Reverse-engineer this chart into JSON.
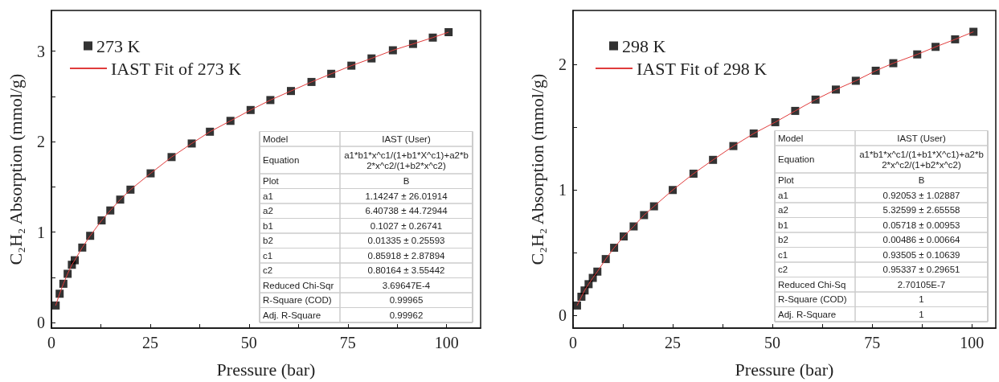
{
  "chart_data": [
    {
      "type": "scatter",
      "xlabel": "Pressure (bar)",
      "ylabel": "C₂H₂ Absorption (mmol/g)",
      "xlim": [
        0,
        108.6
      ],
      "ylim": [
        -0.06,
        3.45
      ],
      "xticks": [
        0,
        {
          "value": 12.5,
          "label": null
        },
        25,
        {
          "value": 37.5,
          "label": null
        },
        50,
        {
          "value": 62.5,
          "label": null
        },
        75,
        {
          "value": 87.5,
          "label": null
        },
        100
      ],
      "yticks": [
        0,
        {
          "value": 0.5,
          "label": null
        },
        1,
        {
          "value": 1.5,
          "label": null
        },
        2,
        {
          "value": 2.5,
          "label": null
        },
        3
      ],
      "legend": "top left",
      "grid": false,
      "series": [
        {
          "name": "273 K",
          "marker": "square",
          "color": "#000000",
          "x": [
            1.07,
            2.08,
            3.02,
            4.1,
            5.17,
            5.9,
            7.8,
            9.8,
            12.7,
            14.9,
            17.4,
            20.0,
            25.1,
            30.4,
            35.5,
            40.1,
            45.3,
            50.4,
            55.4,
            60.6,
            65.8,
            70.8,
            75.9,
            81.0,
            86.4,
            91.5,
            96.5,
            100.5
          ],
          "values": [
            0.19,
            0.32,
            0.43,
            0.54,
            0.64,
            0.69,
            0.83,
            0.96,
            1.13,
            1.24,
            1.36,
            1.47,
            1.65,
            1.83,
            1.98,
            2.11,
            2.23,
            2.35,
            2.46,
            2.56,
            2.66,
            2.75,
            2.84,
            2.92,
            3.01,
            3.08,
            3.15,
            3.21
          ]
        },
        {
          "name": "IAST Fit of 273 K",
          "type": "line",
          "marker": "none",
          "color": "#e03c3c",
          "x": [
            1.07,
            2.08,
            3.02,
            4.1,
            5.17,
            5.9,
            7.8,
            9.8,
            12.7,
            14.9,
            17.4,
            20.0,
            25.1,
            30.4,
            35.5,
            40.1,
            45.3,
            50.4,
            55.4,
            60.6,
            65.8,
            70.8,
            75.9,
            81.0,
            86.4,
            91.5,
            96.5,
            100.5
          ],
          "values": [
            0.19,
            0.32,
            0.43,
            0.54,
            0.64,
            0.69,
            0.83,
            0.96,
            1.13,
            1.24,
            1.36,
            1.47,
            1.65,
            1.83,
            1.98,
            2.11,
            2.23,
            2.35,
            2.46,
            2.56,
            2.66,
            2.75,
            2.84,
            2.92,
            3.01,
            3.08,
            3.15,
            3.21
          ]
        }
      ],
      "annotations": [
        "Model",
        "IAST (User)",
        "Equation",
        "a1*b1*x^c1/(1+b1*X^c1)+a2*b2*x^c2/(1+b2*x^c2)",
        "Plot",
        "B",
        "a1",
        "1.14247 ± 26.01914",
        "a2",
        "6.40738 ± 44.72944",
        "b1",
        "0.1027 ± 0.26741",
        "b2",
        "0.01335 ± 0.25593",
        "c1",
        "0.85918 ± 2.87894",
        "c2",
        "0.80164 ± 3.55442",
        "Reduced Chi-Sqr",
        "3.69647E-4",
        "R-Square (COD)",
        "0.99965",
        "Adj. R-Square",
        "0.99962"
      ]
    },
    {
      "type": "scatter",
      "xlabel": "Pressure (bar)",
      "ylabel": "C₂H₂ Absorption (mmol/g)",
      "xlim": [
        0,
        106
      ],
      "ylim": [
        -0.1,
        2.43
      ],
      "xticks": [
        0,
        {
          "value": 12.5,
          "label": null
        },
        25,
        {
          "value": 37.5,
          "label": null
        },
        50,
        {
          "value": 62.5,
          "label": null
        },
        75,
        {
          "value": 87.5,
          "label": null
        },
        100
      ],
      "yticks": [
        0,
        {
          "value": 0.5,
          "label": null
        },
        1,
        {
          "value": 1.5,
          "label": null
        },
        2
      ],
      "legend": "top left",
      "grid": false,
      "series": [
        {
          "name": "298 K",
          "marker": "square",
          "color": "#000000",
          "x": [
            1.0,
            2.1,
            2.9,
            3.9,
            4.95,
            6.1,
            8.2,
            10.3,
            12.7,
            15.2,
            17.8,
            20.3,
            25.0,
            30.2,
            35.1,
            40.2,
            45.3,
            50.7,
            55.7,
            60.8,
            65.9,
            70.9,
            75.9,
            80.3,
            86.3,
            90.9,
            95.8,
            100.4
          ],
          "values": [
            0.08,
            0.15,
            0.2,
            0.25,
            0.3,
            0.35,
            0.45,
            0.54,
            0.63,
            0.71,
            0.8,
            0.87,
            1.0,
            1.13,
            1.24,
            1.35,
            1.45,
            1.54,
            1.63,
            1.72,
            1.8,
            1.87,
            1.95,
            2.01,
            2.08,
            2.14,
            2.2,
            2.26
          ]
        },
        {
          "name": "IAST Fit of 298 K",
          "type": "line",
          "marker": "none",
          "color": "#e03c3c",
          "x": [
            1.0,
            2.1,
            2.9,
            3.9,
            4.95,
            6.1,
            8.2,
            10.3,
            12.7,
            15.2,
            17.8,
            20.3,
            25.0,
            30.2,
            35.1,
            40.2,
            45.3,
            50.7,
            55.7,
            60.8,
            65.9,
            70.9,
            75.9,
            80.3,
            86.3,
            90.9,
            95.8,
            100.4
          ],
          "values": [
            0.08,
            0.15,
            0.2,
            0.25,
            0.3,
            0.35,
            0.45,
            0.54,
            0.63,
            0.71,
            0.8,
            0.87,
            1.0,
            1.13,
            1.24,
            1.35,
            1.45,
            1.54,
            1.63,
            1.72,
            1.8,
            1.87,
            1.95,
            2.01,
            2.08,
            2.14,
            2.2,
            2.26
          ]
        }
      ],
      "annotations": [
        "Model",
        "IAST (User)",
        "Equation",
        "a1*b1*x^c1/(1+b1*X^c1)+a2*b2*x^c2/(1+b2*x^c2)",
        "Plot",
        "B",
        "a1",
        "0.92053 ± 1.02887",
        "a2",
        "5.32599 ± 2.65558",
        "b1",
        "0.05718 ± 0.00953",
        "b2",
        "0.00486 ± 0.00664",
        "c1",
        "0.93505 ± 0.10639",
        "c2",
        "0.95337 ± 0.29651",
        "Reduced Chi-Sq",
        "2.70105E-7",
        "R-Square (COD)",
        "1",
        "Adj. R-Square",
        "1"
      ]
    }
  ]
}
